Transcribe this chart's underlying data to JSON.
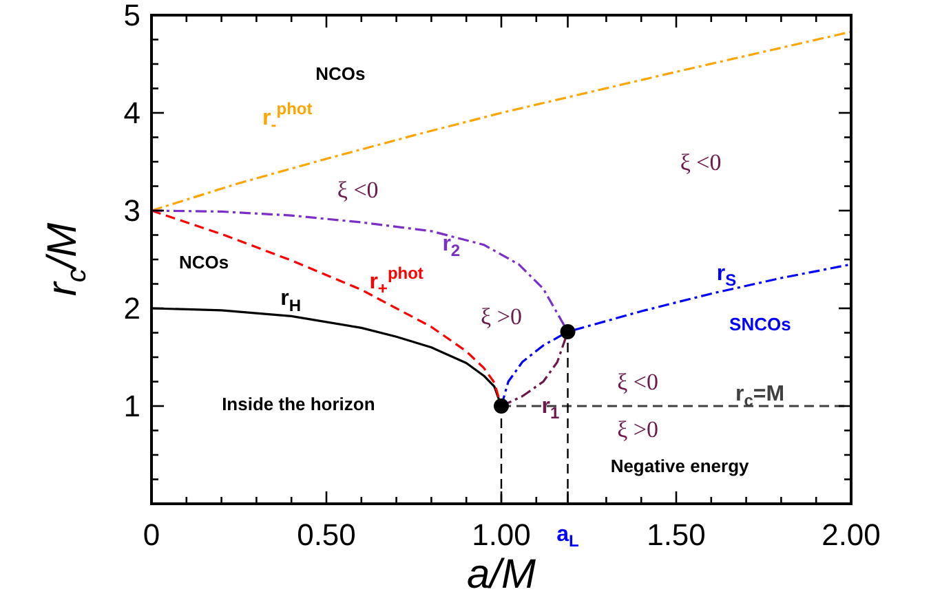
{
  "chart_data": {
    "type": "line",
    "xlabel": "a/M",
    "ylabel": "r$_{c}$/M",
    "xlim": [
      0,
      2
    ],
    "ylim": [
      0,
      5
    ],
    "xticks": [
      0,
      {
        "value": 0.1,
        "label": null
      },
      {
        "value": 0.2,
        "label": null
      },
      {
        "value": 0.3,
        "label": null
      },
      {
        "value": 0.4,
        "label": null
      },
      {
        "value": 0.5,
        "label": "0.50"
      },
      {
        "value": 0.6,
        "label": null
      },
      {
        "value": 0.7,
        "label": null
      },
      {
        "value": 0.8,
        "label": null
      },
      {
        "value": 0.9,
        "label": null
      },
      {
        "value": 1,
        "label": "1.00"
      },
      {
        "value": 1.1,
        "label": null
      },
      {
        "value": 1.19,
        "label": "a$_{L}$"
      },
      {
        "value": 1.3,
        "label": null
      },
      {
        "value": 1.4,
        "label": null
      },
      {
        "value": 1.5,
        "label": "1.50"
      },
      {
        "value": 1.6,
        "label": null
      },
      {
        "value": 1.7,
        "label": null
      },
      {
        "value": 1.8,
        "label": null
      },
      {
        "value": 1.9,
        "label": null
      },
      {
        "value": 2,
        "label": "2.00"
      }
    ],
    "yticks": [
      {
        "value": 0.25,
        "label": null
      },
      {
        "value": 0.5,
        "label": null
      },
      {
        "value": 0.75,
        "label": null
      },
      1,
      {
        "value": 1.25,
        "label": null
      },
      {
        "value": 1.5,
        "label": null
      },
      {
        "value": 1.75,
        "label": null
      },
      2,
      {
        "value": 2.25,
        "label": null
      },
      {
        "value": 2.5,
        "label": null
      },
      {
        "value": 2.75,
        "label": null
      },
      3,
      {
        "value": 3.25,
        "label": null
      },
      {
        "value": 3.5,
        "label": null
      },
      {
        "value": 3.75,
        "label": null
      },
      4,
      {
        "value": 4.25,
        "label": null
      },
      {
        "value": 4.5,
        "label": null
      },
      {
        "value": 4.75,
        "label": null
      },
      5
    ],
    "series": [
      {
        "name": "r$_{H}$",
        "color": "#000000",
        "line_style": "solid",
        "x": [
          0,
          0.2,
          0.4,
          0.6,
          0.7,
          0.8,
          0.9,
          0.95,
          0.98,
          1
        ],
        "values": [
          2,
          1.98,
          1.92,
          1.8,
          1.71,
          1.6,
          1.44,
          1.31,
          1.2,
          1
        ]
      },
      {
        "name": "r$_{+}$$^{phot}$",
        "color": "#ff0000",
        "line_style": "dashed",
        "x": [
          0,
          0.2,
          0.4,
          0.6,
          0.8,
          0.9,
          0.95,
          0.98,
          1
        ],
        "values": [
          3,
          2.76,
          2.49,
          2.19,
          1.81,
          1.56,
          1.39,
          1.24,
          1
        ]
      },
      {
        "name": "r$_{-}$$^{phot}$",
        "color": "#ffa500",
        "line_style": "dashdot",
        "x": [
          0,
          0.25,
          0.5,
          0.75,
          1,
          1.5,
          2
        ],
        "values": [
          3,
          3.28,
          3.53,
          3.77,
          4,
          4.42,
          4.83
        ]
      },
      {
        "name": "r$_{2}$",
        "color": "#7b2fc9",
        "line_style": "dashdot",
        "x": [
          0,
          0.2,
          0.4,
          0.6,
          0.8,
          0.95,
          1.05,
          1.12,
          1.16,
          1.19
        ],
        "values": [
          3,
          2.99,
          2.95,
          2.88,
          2.79,
          2.65,
          2.45,
          2.2,
          1.95,
          1.76
        ]
      },
      {
        "name": "r$_{S}$",
        "color": "#0000ff",
        "line_style": "dashdot",
        "x": [
          1,
          1.02,
          1.06,
          1.12,
          1.19,
          1.4,
          1.6,
          1.8,
          2
        ],
        "values": [
          1,
          1.25,
          1.45,
          1.62,
          1.76,
          1.97,
          2.15,
          2.31,
          2.45
        ]
      },
      {
        "name": "r$_{1}$",
        "color": "#6b1a4a",
        "line_style": "dashdot",
        "x": [
          1,
          1.06,
          1.12,
          1.16,
          1.19
        ],
        "values": [
          1,
          1.1,
          1.25,
          1.45,
          1.76
        ]
      },
      {
        "name": "r$_{c}$=M",
        "color": "#404040",
        "line_style": "dashed",
        "x": [
          1,
          2
        ],
        "values": [
          1,
          1
        ]
      },
      {
        "type": "scatter",
        "color": "#000000",
        "marker": "circle",
        "line_style": "dashed",
        "x": [
          1,
          1.19
        ],
        "values": [
          1,
          1.76
        ],
        "errors": [
          [
            1,
            0
          ],
          [
            1.76,
            0
          ]
        ]
      }
    ],
    "annotations": [
      "NCOs",
      "NCOs",
      "Inside the horizon",
      "Negative energy",
      "SNCOs",
      "ξ <0",
      "ξ <0",
      "ξ >0",
      "ξ <0",
      "ξ >0"
    ]
  }
}
